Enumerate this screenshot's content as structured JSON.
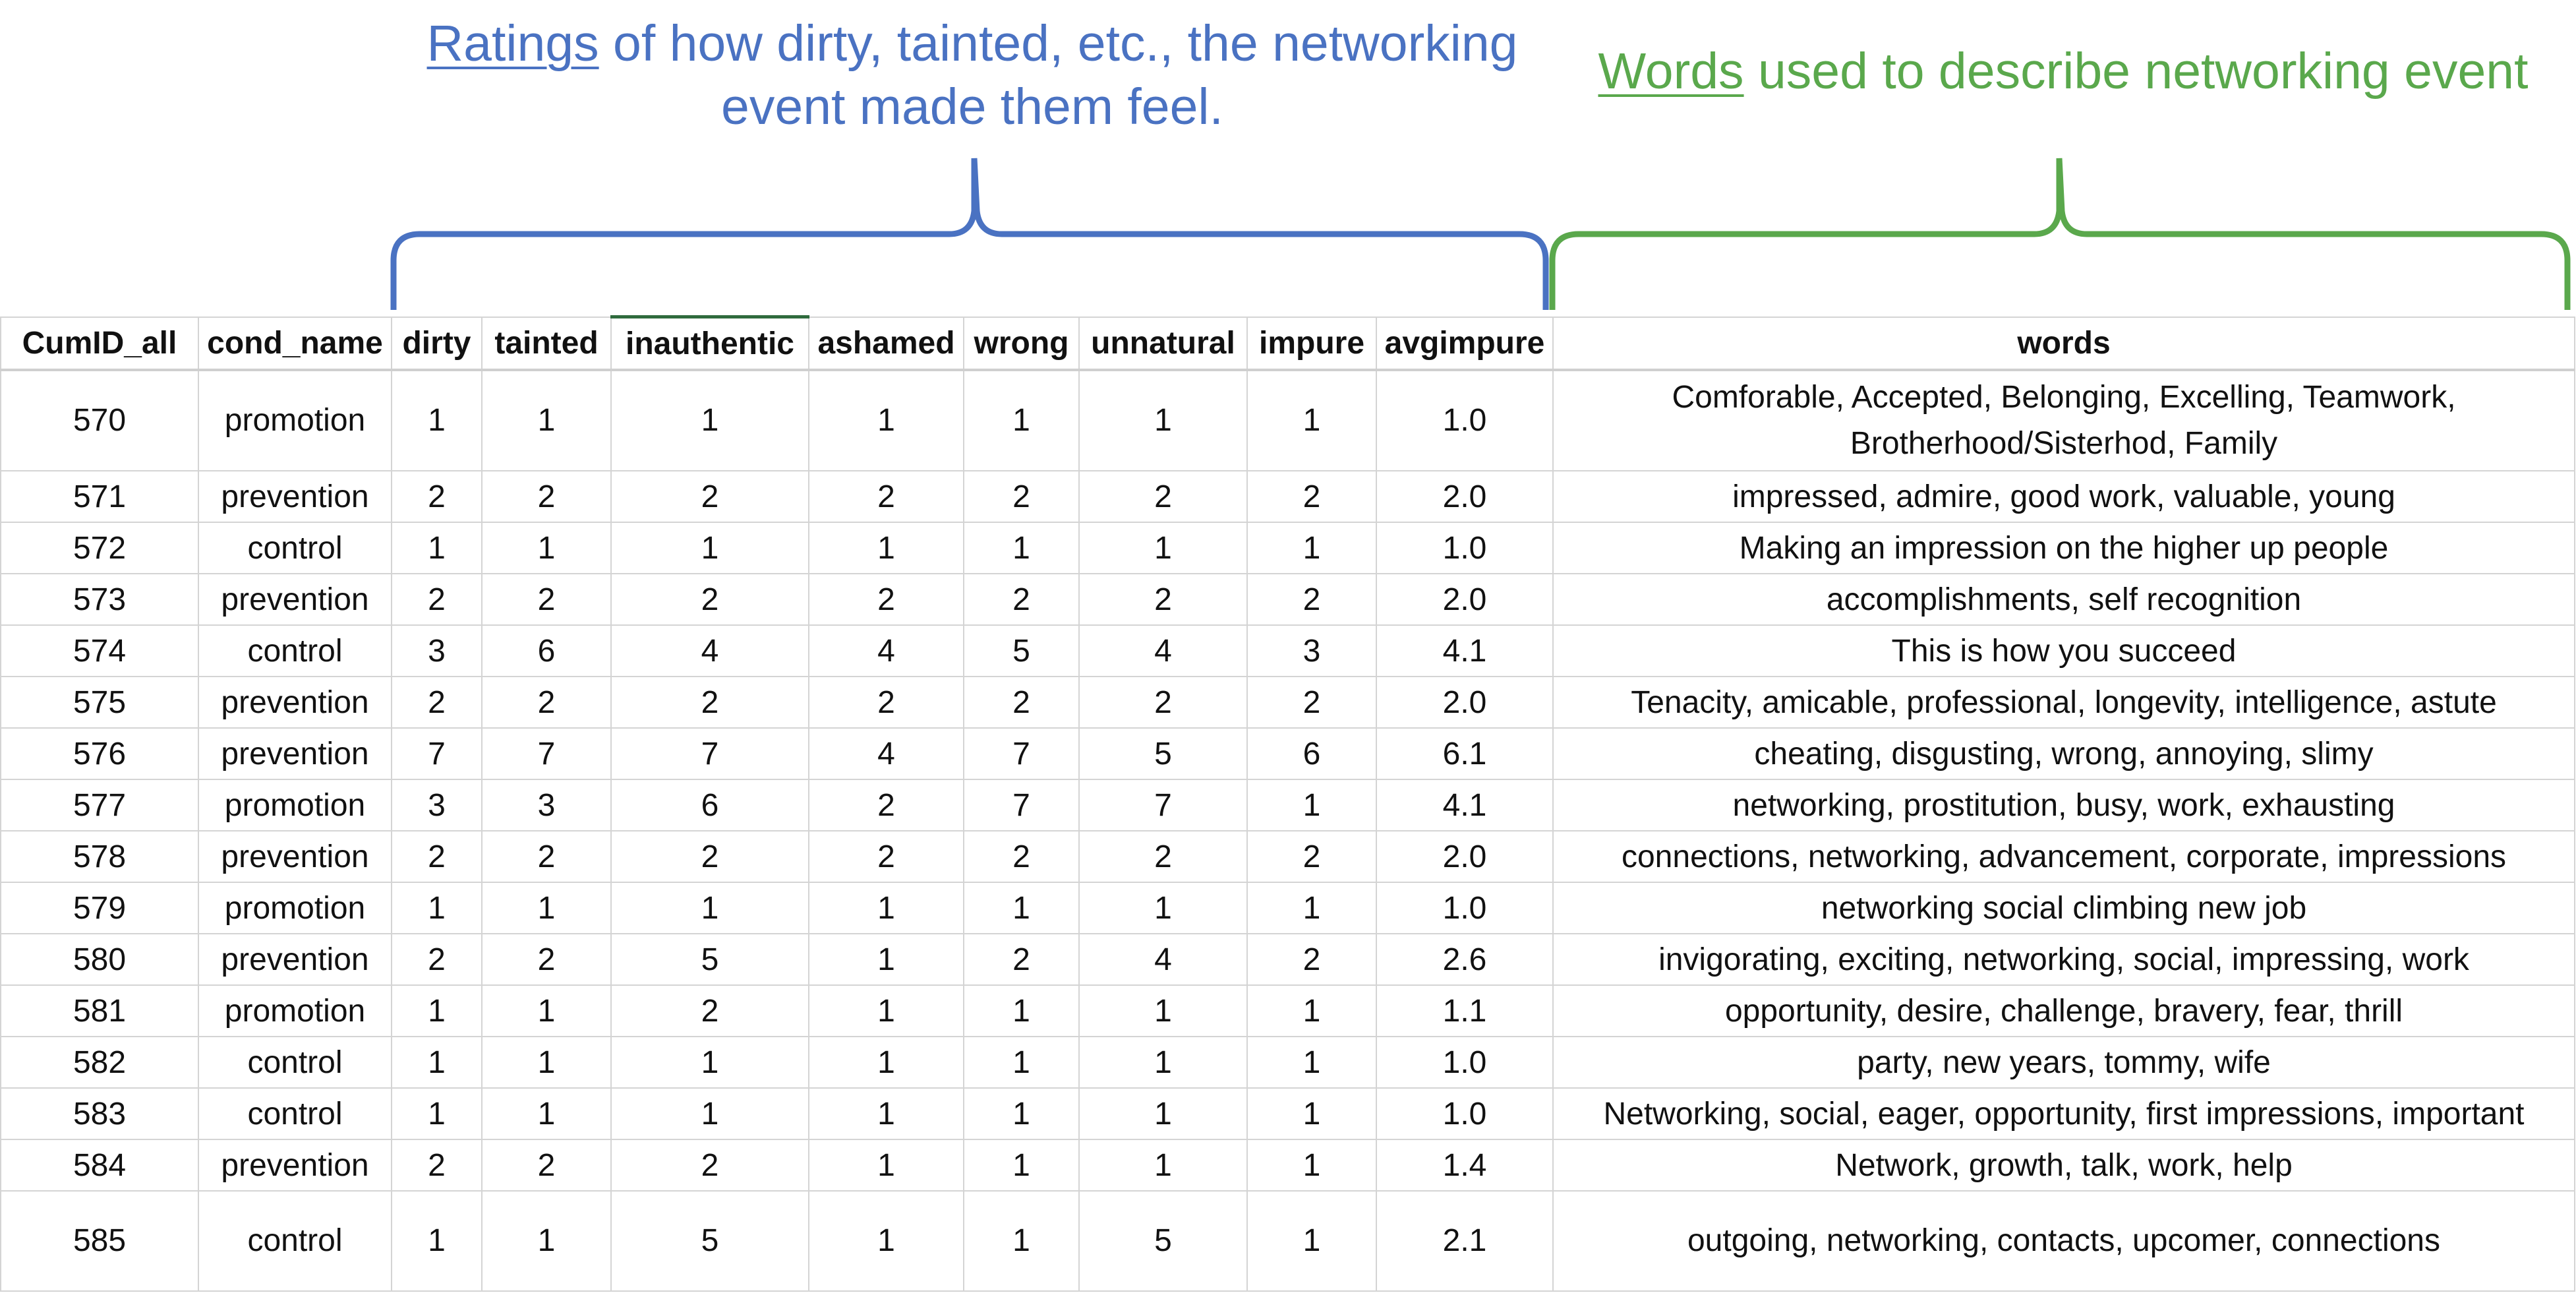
{
  "annotations": {
    "ratings": {
      "lead": "Ratings",
      "rest": " of how dirty, tainted, etc., the networking event made them feel.",
      "color": "#4a72c2"
    },
    "words": {
      "lead": "Words",
      "rest": " used to describe networking event",
      "color": "#5aa84c"
    }
  },
  "sheet": {
    "columns": [
      "CumID_all",
      "cond_name",
      "dirty",
      "tainted",
      "inauthentic",
      "ashamed",
      "wrong",
      "unnatural",
      "impure",
      "avgimpure",
      "words"
    ],
    "rows": [
      [
        "570",
        "promotion",
        "1",
        "1",
        "1",
        "1",
        "1",
        "1",
        "1",
        "1.0",
        "Comforable, Accepted, Belonging, Excelling, Teamwork, Brotherhood/Sisterhod, Family"
      ],
      [
        "571",
        "prevention",
        "2",
        "2",
        "2",
        "2",
        "2",
        "2",
        "2",
        "2.0",
        "impressed, admire, good work, valuable, young"
      ],
      [
        "572",
        "control",
        "1",
        "1",
        "1",
        "1",
        "1",
        "1",
        "1",
        "1.0",
        "Making an impression on the higher up people"
      ],
      [
        "573",
        "prevention",
        "2",
        "2",
        "2",
        "2",
        "2",
        "2",
        "2",
        "2.0",
        "accomplishments, self recognition"
      ],
      [
        "574",
        "control",
        "3",
        "6",
        "4",
        "4",
        "5",
        "4",
        "3",
        "4.1",
        "This is how you succeed"
      ],
      [
        "575",
        "prevention",
        "2",
        "2",
        "2",
        "2",
        "2",
        "2",
        "2",
        "2.0",
        "Tenacity, amicable, professional, longevity, intelligence, astute"
      ],
      [
        "576",
        "prevention",
        "7",
        "7",
        "7",
        "4",
        "7",
        "5",
        "6",
        "6.1",
        "cheating, disgusting, wrong, annoying, slimy"
      ],
      [
        "577",
        "promotion",
        "3",
        "3",
        "6",
        "2",
        "7",
        "7",
        "1",
        "4.1",
        "networking, prostitution, busy, work, exhausting"
      ],
      [
        "578",
        "prevention",
        "2",
        "2",
        "2",
        "2",
        "2",
        "2",
        "2",
        "2.0",
        "connections, networking, advancement, corporate, impressions"
      ],
      [
        "579",
        "promotion",
        "1",
        "1",
        "1",
        "1",
        "1",
        "1",
        "1",
        "1.0",
        "networking social climbing new job"
      ],
      [
        "580",
        "prevention",
        "2",
        "2",
        "5",
        "1",
        "2",
        "4",
        "2",
        "2.6",
        "invigorating, exciting, networking, social, impressing, work"
      ],
      [
        "581",
        "promotion",
        "1",
        "1",
        "2",
        "1",
        "1",
        "1",
        "1",
        "1.1",
        "opportunity, desire, challenge, bravery, fear, thrill"
      ],
      [
        "582",
        "control",
        "1",
        "1",
        "1",
        "1",
        "1",
        "1",
        "1",
        "1.0",
        "party, new years, tommy, wife"
      ],
      [
        "583",
        "control",
        "1",
        "1",
        "1",
        "1",
        "1",
        "1",
        "1",
        "1.0",
        "Networking, social, eager, opportunity, first impressions, important"
      ],
      [
        "584",
        "prevention",
        "2",
        "2",
        "2",
        "1",
        "1",
        "1",
        "1",
        "1.4",
        "Network, growth, talk, work, help"
      ],
      [
        "585",
        "control",
        "1",
        "1",
        "5",
        "1",
        "1",
        "5",
        "1",
        "2.1",
        "outgoing, networking, contacts, upcomer, connections"
      ]
    ]
  }
}
